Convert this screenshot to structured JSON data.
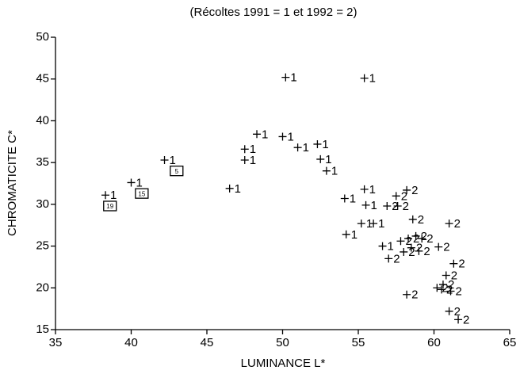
{
  "chart_data": {
    "type": "scatter",
    "title": "(Récoltes 1991 = 1 et 1992 = 2)",
    "x_label": "LUMINANCE L*",
    "y_label": "CHROMATICITE C*",
    "xlim": [
      35,
      65
    ],
    "xticks": [
      35,
      40,
      45,
      50,
      55,
      60,
      65
    ],
    "ylim": [
      15,
      50
    ],
    "yticks": [
      15,
      20,
      25,
      30,
      35,
      40,
      45,
      50
    ],
    "color": "#000000",
    "series": [
      {
        "marker_label": "1",
        "x": [
          38.3,
          40.0,
          42.2,
          46.5,
          47.5,
          47.5,
          48.3,
          50.2,
          50.0,
          51.0,
          52.3,
          52.5,
          52.9,
          55.4,
          54.1,
          55.4,
          55.5,
          54.2,
          55.2,
          56.0,
          56.6
        ],
        "y": [
          31.1,
          32.6,
          35.3,
          31.9,
          35.3,
          36.6,
          38.4,
          45.2,
          38.1,
          36.8,
          37.2,
          35.4,
          34.0,
          45.1,
          30.7,
          31.8,
          29.9,
          26.4,
          27.7,
          27.7,
          25.0
        ]
      },
      {
        "marker_label": "2",
        "x": [
          57.5,
          58.2,
          56.9,
          57.6,
          58.6,
          57.0,
          58.0,
          57.8,
          58.3,
          58.8,
          58.5,
          59.0,
          59.2,
          60.3,
          61.0,
          61.3,
          60.8,
          60.6,
          60.2,
          60.5,
          61.1,
          58.2,
          61.0,
          61.6
        ],
        "y": [
          31.0,
          31.7,
          29.8,
          29.8,
          28.2,
          23.5,
          24.3,
          25.6,
          25.9,
          26.2,
          24.8,
          24.4,
          25.9,
          24.9,
          27.7,
          22.9,
          21.5,
          20.4,
          20.0,
          19.8,
          19.6,
          19.2,
          17.2,
          16.2
        ]
      }
    ],
    "boxed": {
      "labels": [
        "19",
        "15",
        "5"
      ],
      "x": [
        38.6,
        40.7,
        43.0
      ],
      "y": [
        29.8,
        31.3,
        34.0
      ]
    }
  }
}
